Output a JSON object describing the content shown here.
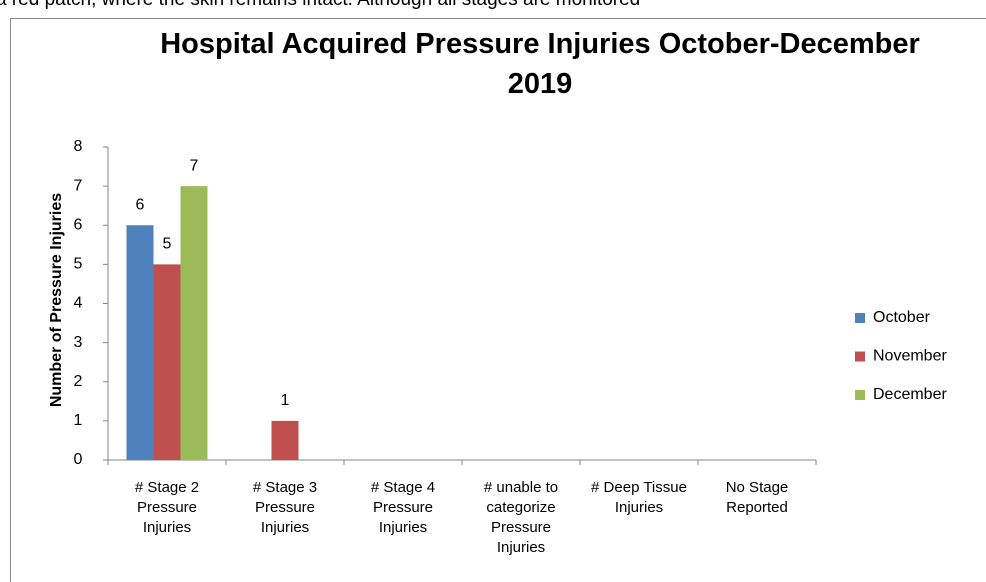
{
  "page_text": "a red patch, where the skin remains intact. Although all stages are monitored",
  "chart_data": {
    "type": "bar",
    "title": "Hospital Acquired Pressure Injuries October-December 2019",
    "y_label": "Number of Pressure Injuries",
    "categories": [
      "# Stage 2 Pressure Injuries",
      "# Stage 3 Pressure Injuries",
      "# Stage 4 Pressure Injuries",
      "# unable to categorize Pressure Injuries",
      "# Deep Tissue Injuries",
      "No Stage Reported"
    ],
    "series": [
      {
        "name": "October",
        "color": "#4f81bd",
        "values": [
          6,
          null,
          null,
          null,
          null,
          null
        ]
      },
      {
        "name": "November",
        "color": "#c0504d",
        "values": [
          5,
          1,
          null,
          null,
          null,
          null
        ]
      },
      {
        "name": "December",
        "color": "#9bbb59",
        "values": [
          7,
          null,
          null,
          null,
          null,
          null
        ]
      }
    ],
    "ylim": [
      0,
      8
    ],
    "yticks": [
      0,
      1,
      2,
      3,
      4,
      5,
      6,
      7,
      8
    ],
    "grid": false,
    "legend": "right"
  }
}
